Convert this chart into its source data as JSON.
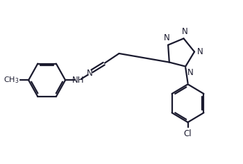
{
  "background_color": "#ffffff",
  "line_color": "#1a1a2e",
  "line_width": 1.6,
  "font_size": 8.5,
  "figsize": [
    3.5,
    2.36
  ],
  "dpi": 100,
  "xlim": [
    0,
    10
  ],
  "ylim": [
    0,
    6.74
  ]
}
